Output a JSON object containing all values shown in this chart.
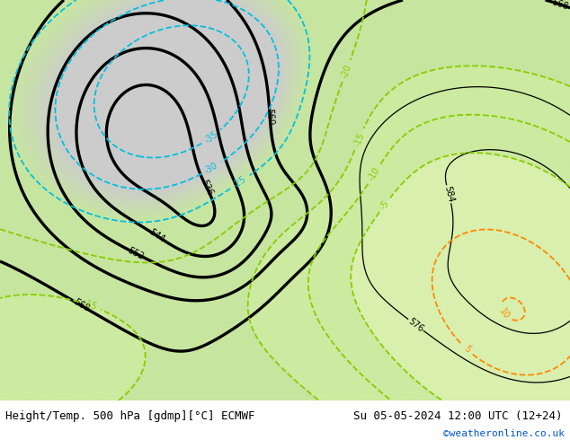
{
  "title_left": "Height/Temp. 500 hPa [gdmp][°C] ECMWF",
  "title_right": "Su 05-05-2024 12:00 UTC (12+24)",
  "watermark": "©weatheronline.co.uk",
  "watermark_color": "#0055cc",
  "fig_width": 6.34,
  "fig_height": 4.9,
  "dpi": 100,
  "bg_color": "#ffffff",
  "title_fontsize": 9,
  "watermark_fontsize": 8
}
